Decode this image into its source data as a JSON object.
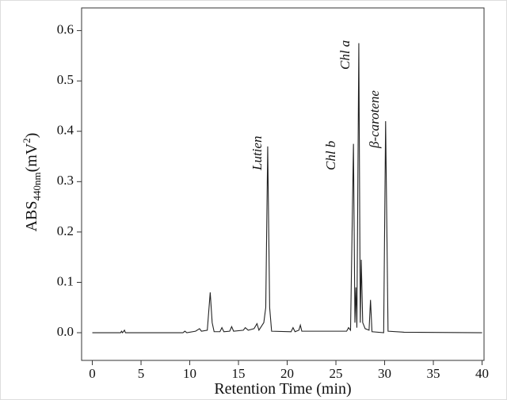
{
  "chart_data": {
    "type": "line",
    "x_label": "Retention Time (min)",
    "y_label": {
      "main": "ABS",
      "sub": "440nm",
      "unit": "(mV",
      "sup": "2",
      "close": ")"
    },
    "annotations": [
      "Lutien",
      "Chl b",
      "Chl a",
      "β-carotene"
    ],
    "color": "#222222",
    "xlim": [
      -1.1,
      40.2
    ],
    "ylim": [
      -0.055,
      0.645
    ],
    "xticks": [
      0,
      5,
      10,
      15,
      20,
      25,
      30,
      35,
      40
    ],
    "yticks": [
      {
        "value": 0,
        "label": "0.0"
      },
      0.1,
      0.2,
      0.3,
      0.4,
      0.5,
      0.6
    ],
    "x": [
      0,
      2.9,
      3.0,
      3.1,
      3.3,
      3.4,
      9.3,
      9.5,
      9.7,
      10.6,
      11.0,
      11.2,
      11.8,
      12.1,
      12.3,
      12.5,
      13.1,
      13.3,
      13.5,
      14.1,
      14.3,
      14.5,
      15.5,
      15.7,
      16.0,
      16.6,
      16.9,
      17.1,
      17.6,
      17.8,
      18.0,
      18.2,
      18.4,
      20.4,
      20.6,
      20.8,
      21.2,
      21.35,
      21.5,
      26.1,
      26.3,
      26.5,
      26.8,
      26.95,
      27.05,
      27.15,
      27.35,
      27.5,
      27.6,
      27.75,
      28.0,
      28.4,
      28.55,
      28.7,
      29.9,
      30.1,
      30.35,
      32,
      40
    ],
    "values": [
      0,
      0,
      0.003,
      0,
      0.005,
      0,
      0,
      0.003,
      0,
      0.003,
      0.008,
      0.003,
      0.005,
      0.08,
      0.02,
      0.002,
      0.002,
      0.01,
      0.002,
      0.003,
      0.012,
      0.003,
      0.005,
      0.01,
      0.005,
      0.008,
      0.018,
      0.005,
      0.02,
      0.05,
      0.37,
      0.05,
      0.003,
      0.002,
      0.01,
      0.002,
      0.005,
      0.015,
      0.003,
      0.003,
      0.01,
      0.005,
      0.375,
      0.02,
      0.09,
      0.01,
      0.575,
      0.02,
      0.145,
      0.02,
      0.008,
      0.005,
      0.065,
      0.002,
      0,
      0.42,
      0.003,
      0.001,
      0
    ]
  }
}
